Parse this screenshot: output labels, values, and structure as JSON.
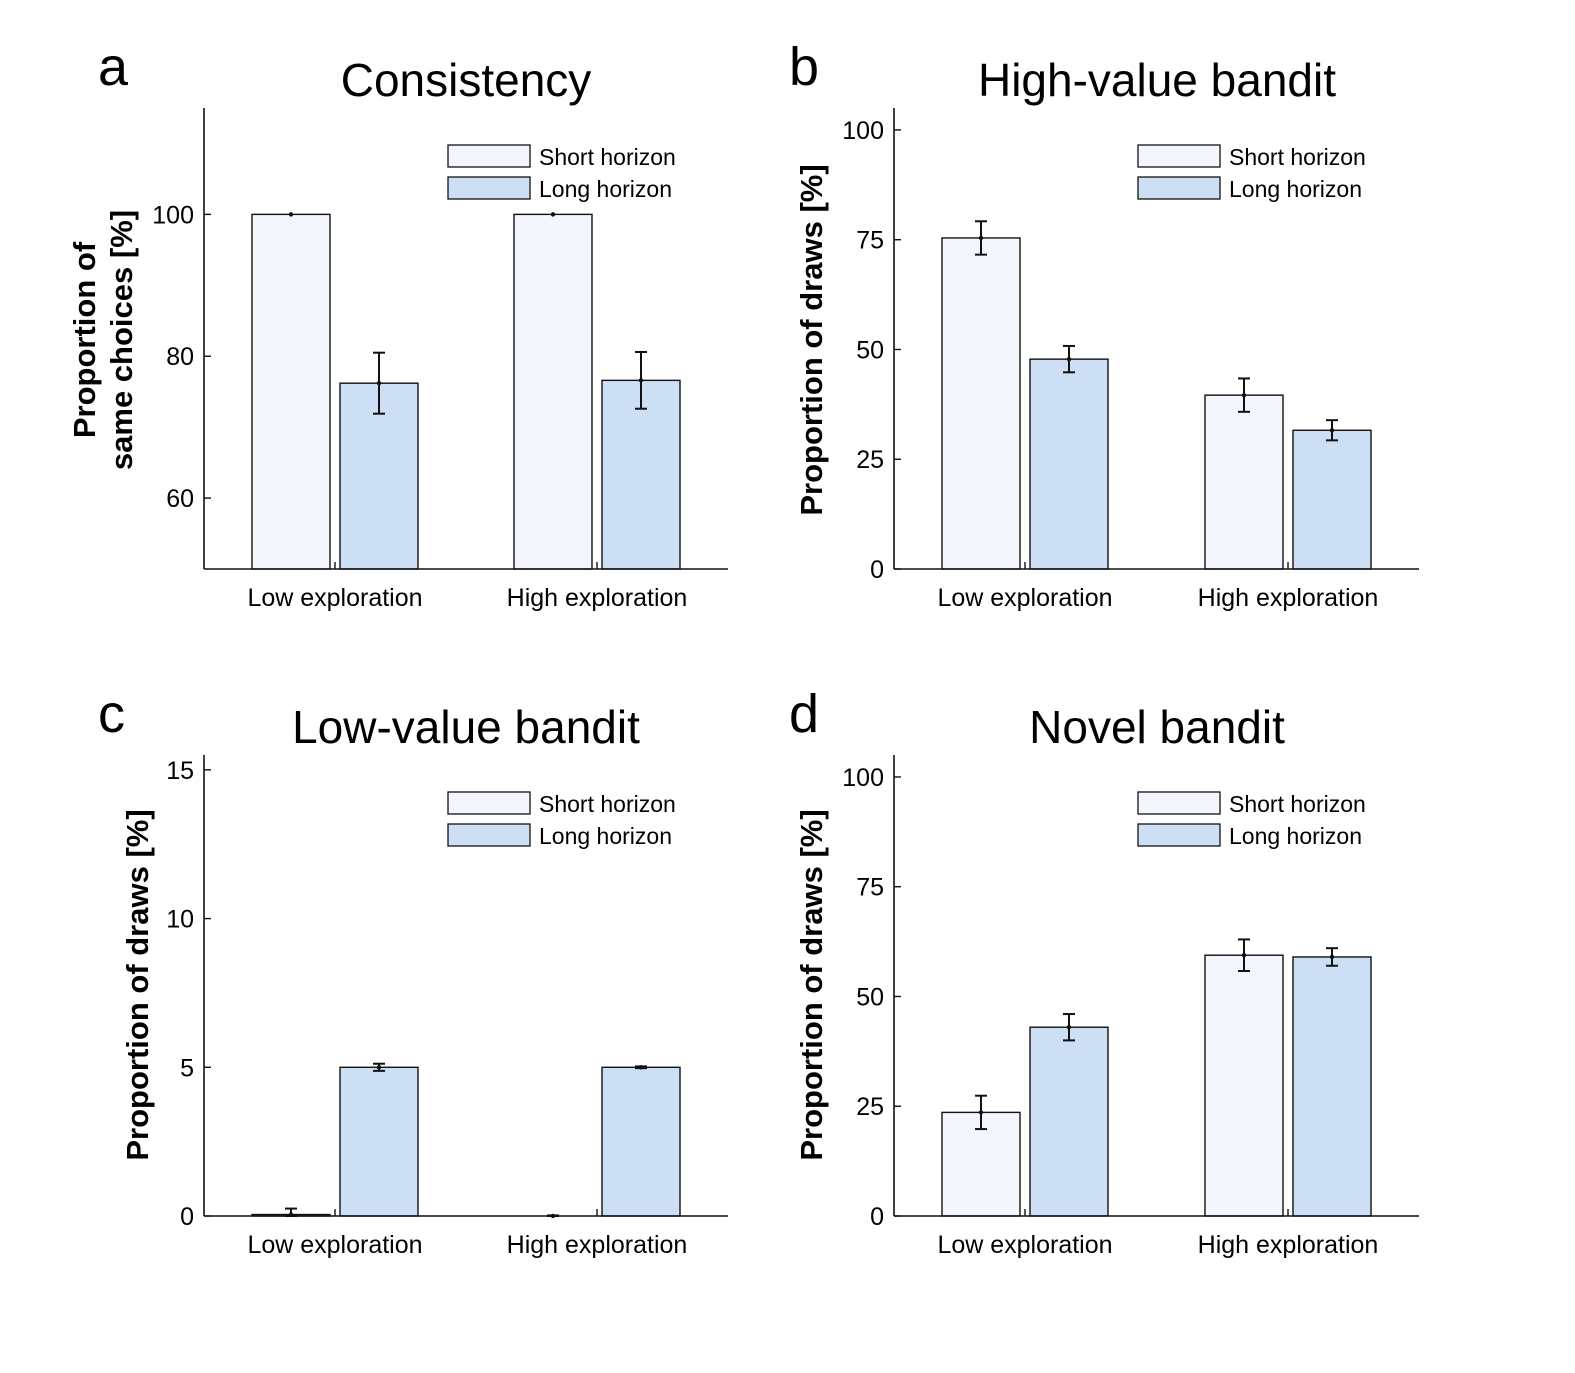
{
  "colors": {
    "short_fill": "#f3f7fd",
    "long_fill": "#cddff5",
    "edge": "#111111",
    "background": "#ffffff"
  },
  "chart_data": [
    {
      "panel": "a",
      "type": "bar",
      "title": "Consistency",
      "ylabel": [
        "Proportion of",
        "same choices [%]"
      ],
      "xlabel": "",
      "categories": [
        "Low exploration",
        "High exploration"
      ],
      "yticks": [
        60,
        80,
        100
      ],
      "ylim": [
        50,
        115
      ],
      "grid": false,
      "legend": "top-right",
      "series": [
        {
          "name": "Short horizon",
          "values": [
            100,
            100
          ],
          "err": [
            0,
            0
          ]
        },
        {
          "name": "Long horizon",
          "values": [
            76.2,
            76.6
          ],
          "err": [
            4.3,
            4.0
          ]
        }
      ]
    },
    {
      "panel": "b",
      "type": "bar",
      "title": "High-value bandit",
      "ylabel": [
        "Proportion of draws [%]"
      ],
      "xlabel": "",
      "categories": [
        "Low exploration",
        "High exploration"
      ],
      "yticks": [
        0,
        25,
        50,
        75,
        100
      ],
      "ylim": [
        0,
        105
      ],
      "grid": false,
      "legend": "top-right",
      "series": [
        {
          "name": "Short horizon",
          "values": [
            75.4,
            39.6
          ],
          "err": [
            3.8,
            3.8
          ]
        },
        {
          "name": "Long horizon",
          "values": [
            47.8,
            31.6
          ],
          "err": [
            3.0,
            2.3
          ]
        }
      ]
    },
    {
      "panel": "c",
      "type": "bar",
      "title": "Low-value bandit",
      "ylabel": [
        "Proportion of draws [%]"
      ],
      "xlabel": "",
      "categories": [
        "Low exploration",
        "High exploration"
      ],
      "yticks": [
        0,
        5,
        10,
        15
      ],
      "ylim": [
        0,
        15.5
      ],
      "grid": false,
      "legend": "top-right",
      "series": [
        {
          "name": "Short horizon",
          "values": [
            0.05,
            0.0
          ],
          "err": [
            0.2,
            0.02
          ]
        },
        {
          "name": "Long horizon",
          "values": [
            5.0,
            5.0
          ],
          "err": [
            0.12,
            0.03
          ]
        }
      ]
    },
    {
      "panel": "d",
      "type": "bar",
      "title": "Novel bandit",
      "ylabel": [
        "Proportion of draws [%]"
      ],
      "xlabel": "",
      "categories": [
        "Low exploration",
        "High exploration"
      ],
      "yticks": [
        0,
        25,
        50,
        75,
        100
      ],
      "ylim": [
        0,
        105
      ],
      "grid": false,
      "legend": "top-right",
      "series": [
        {
          "name": "Short horizon",
          "values": [
            23.6,
            59.4
          ],
          "err": [
            3.8,
            3.6
          ]
        },
        {
          "name": "Long horizon",
          "values": [
            43.0,
            59.0
          ],
          "err": [
            3.0,
            2.0
          ]
        }
      ]
    }
  ]
}
